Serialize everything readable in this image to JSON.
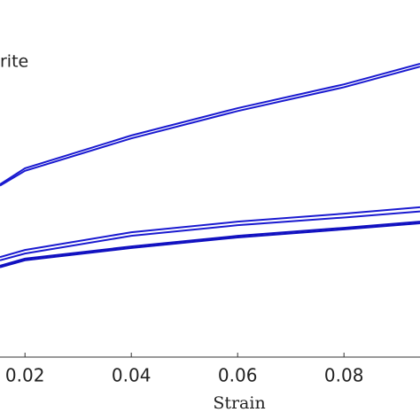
{
  "chart_data": {
    "type": "line",
    "xlabel": "Strain",
    "legend_text": "rite",
    "x": [
      0.0153,
      0.02,
      0.04,
      0.06,
      0.08,
      0.0943
    ],
    "xlim": [
      0.0153,
      0.0943
    ],
    "xticks": [
      0.02,
      0.04,
      0.06,
      0.08
    ],
    "ylim": [
      0,
      1
    ],
    "series": [
      {
        "color": "#1a1ad0",
        "values": [
          0.537,
          0.587,
          0.689,
          0.774,
          0.848,
          0.912
        ]
      },
      {
        "color": "#1a1ad0",
        "values": [
          0.533,
          0.579,
          0.68,
          0.765,
          0.839,
          0.903
        ]
      },
      {
        "color": "#1a1ad0",
        "values": [
          0.311,
          0.333,
          0.388,
          0.421,
          0.446,
          0.466
        ]
      },
      {
        "color": "#1a1ad0",
        "values": [
          0.301,
          0.322,
          0.377,
          0.41,
          0.434,
          0.453
        ]
      },
      {
        "color": "#1010c0",
        "values": [
          0.284,
          0.306,
          0.344,
          0.377,
          0.402,
          0.421
        ]
      },
      {
        "color": "#1010c0",
        "values": [
          0.279,
          0.301,
          0.339,
          0.372,
          0.397,
          0.416
        ]
      }
    ]
  }
}
